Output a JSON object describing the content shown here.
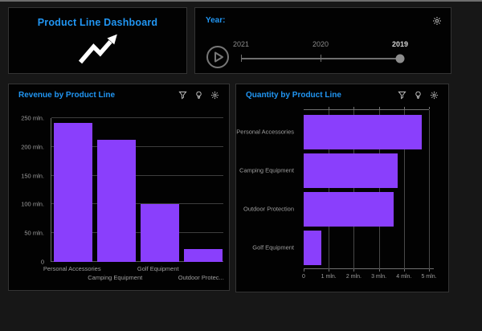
{
  "title_card": {
    "title": "Product Line Dashboard"
  },
  "year_card": {
    "label": "Year:",
    "options": [
      "2021",
      "2020",
      "2019"
    ],
    "selected": "2019"
  },
  "icons": {
    "chart_tools": [
      "filter",
      "lightbulb",
      "gear"
    ],
    "year_tool": "gear",
    "title_graphic": "trending-up-arrow",
    "year_play": "play-button"
  },
  "colors": {
    "accent_blue": "#2196f3",
    "bar_purple": "#8a3ffc",
    "page_bg": "#171717",
    "card_bg": "#020202",
    "muted_text": "#9e9e9e"
  },
  "chart_data": [
    {
      "type": "bar",
      "title": "Revenue by Product Line",
      "categories": [
        "Personal Accessories",
        "Camping Equipment",
        "Golf Equipment",
        "Outdoor Protection"
      ],
      "category_labels_display": [
        "Personal Accessories",
        "Camping Equipment",
        "Golf Equipment",
        "Outdoor Protec..."
      ],
      "values_mln": [
        242,
        213,
        100,
        23
      ],
      "unit": "mln.",
      "ylim": [
        0,
        250
      ],
      "ytick_labels": [
        "0",
        "50 mln.",
        "100 mln.",
        "150 mln.",
        "200 mln.",
        "250 mln."
      ],
      "grid": true,
      "legend": "none"
    },
    {
      "type": "bar-horizontal",
      "title": "Quantity by Product Line",
      "categories": [
        "Personal Accessories",
        "Camping Equipment",
        "Outdoor Protection",
        "Golf Equipment"
      ],
      "values_mln": [
        4.7,
        3.75,
        3.6,
        0.7
      ],
      "unit": "mln.",
      "xlim": [
        0,
        5
      ],
      "xtick_labels": [
        "0",
        "1 mln.",
        "2 mln.",
        "3 mln.",
        "4 mln.",
        "5 mln."
      ],
      "grid": true,
      "legend": "none"
    }
  ]
}
